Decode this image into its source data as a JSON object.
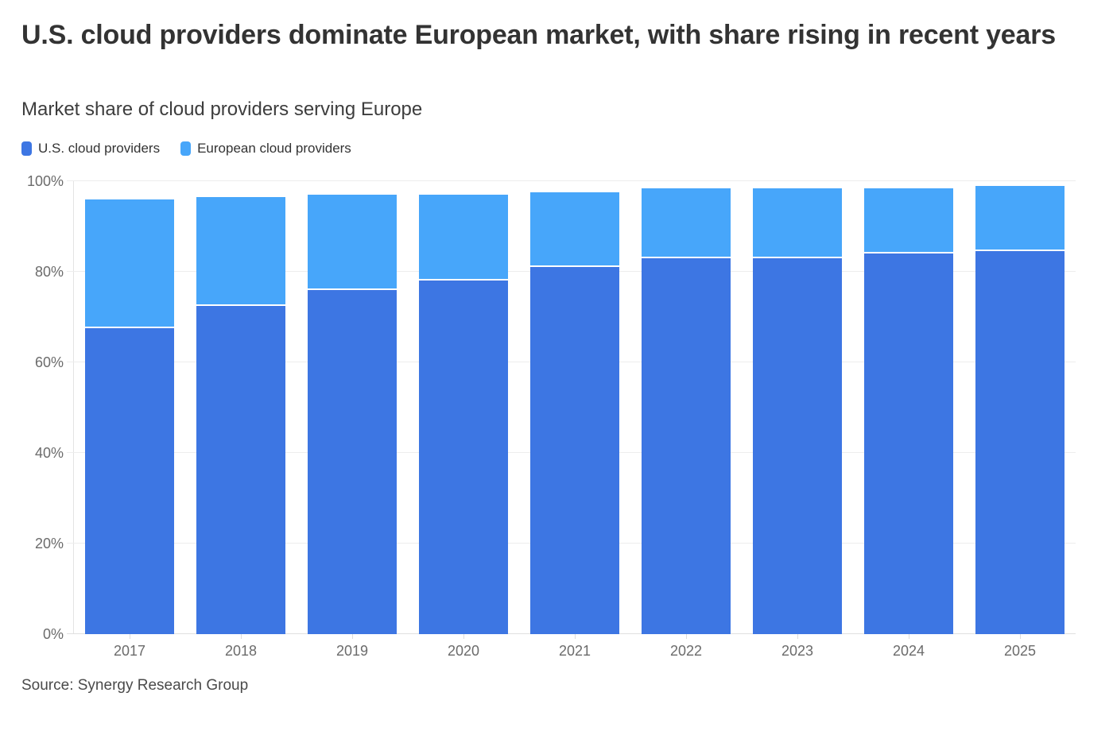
{
  "header": {
    "title": "U.S. cloud providers dominate European market, with share rising in recent years",
    "subtitle": "Market share of cloud providers serving Europe"
  },
  "legend": {
    "items": [
      {
        "id": "us",
        "label": "U.S. cloud providers",
        "color": "#3d76e3"
      },
      {
        "id": "eu",
        "label": "European cloud providers",
        "color": "#47a6fa"
      }
    ]
  },
  "chart_data": {
    "type": "bar",
    "stacked": true,
    "title": "U.S. cloud providers dominate European market, with share rising in recent years",
    "subtitle": "Market share of cloud providers serving Europe",
    "categories": [
      "2017",
      "2018",
      "2019",
      "2020",
      "2021",
      "2022",
      "2023",
      "2024",
      "2025"
    ],
    "series": [
      {
        "id": "us",
        "name": "U.S. cloud providers",
        "color": "#3d76e3",
        "values": [
          67.5,
          72.5,
          76,
          78,
          81,
          83,
          83,
          84,
          84.5
        ]
      },
      {
        "id": "eu",
        "name": "European cloud providers",
        "color": "#47a6fa",
        "values": [
          28.5,
          24,
          21,
          19,
          16.5,
          15.5,
          15.5,
          14.5,
          14.5
        ]
      }
    ],
    "xlabel": "",
    "ylabel": "",
    "ylim": [
      0,
      100
    ],
    "yticks": [
      {
        "value": 0,
        "label": "0%"
      },
      {
        "value": 20,
        "label": "20%"
      },
      {
        "value": 40,
        "label": "40%"
      },
      {
        "value": 60,
        "label": "60%"
      },
      {
        "value": 80,
        "label": "80%"
      },
      {
        "value": 100,
        "label": "100%"
      }
    ],
    "grid": true,
    "legend_position": "top-left"
  },
  "source": "Source: Synergy Research Group"
}
